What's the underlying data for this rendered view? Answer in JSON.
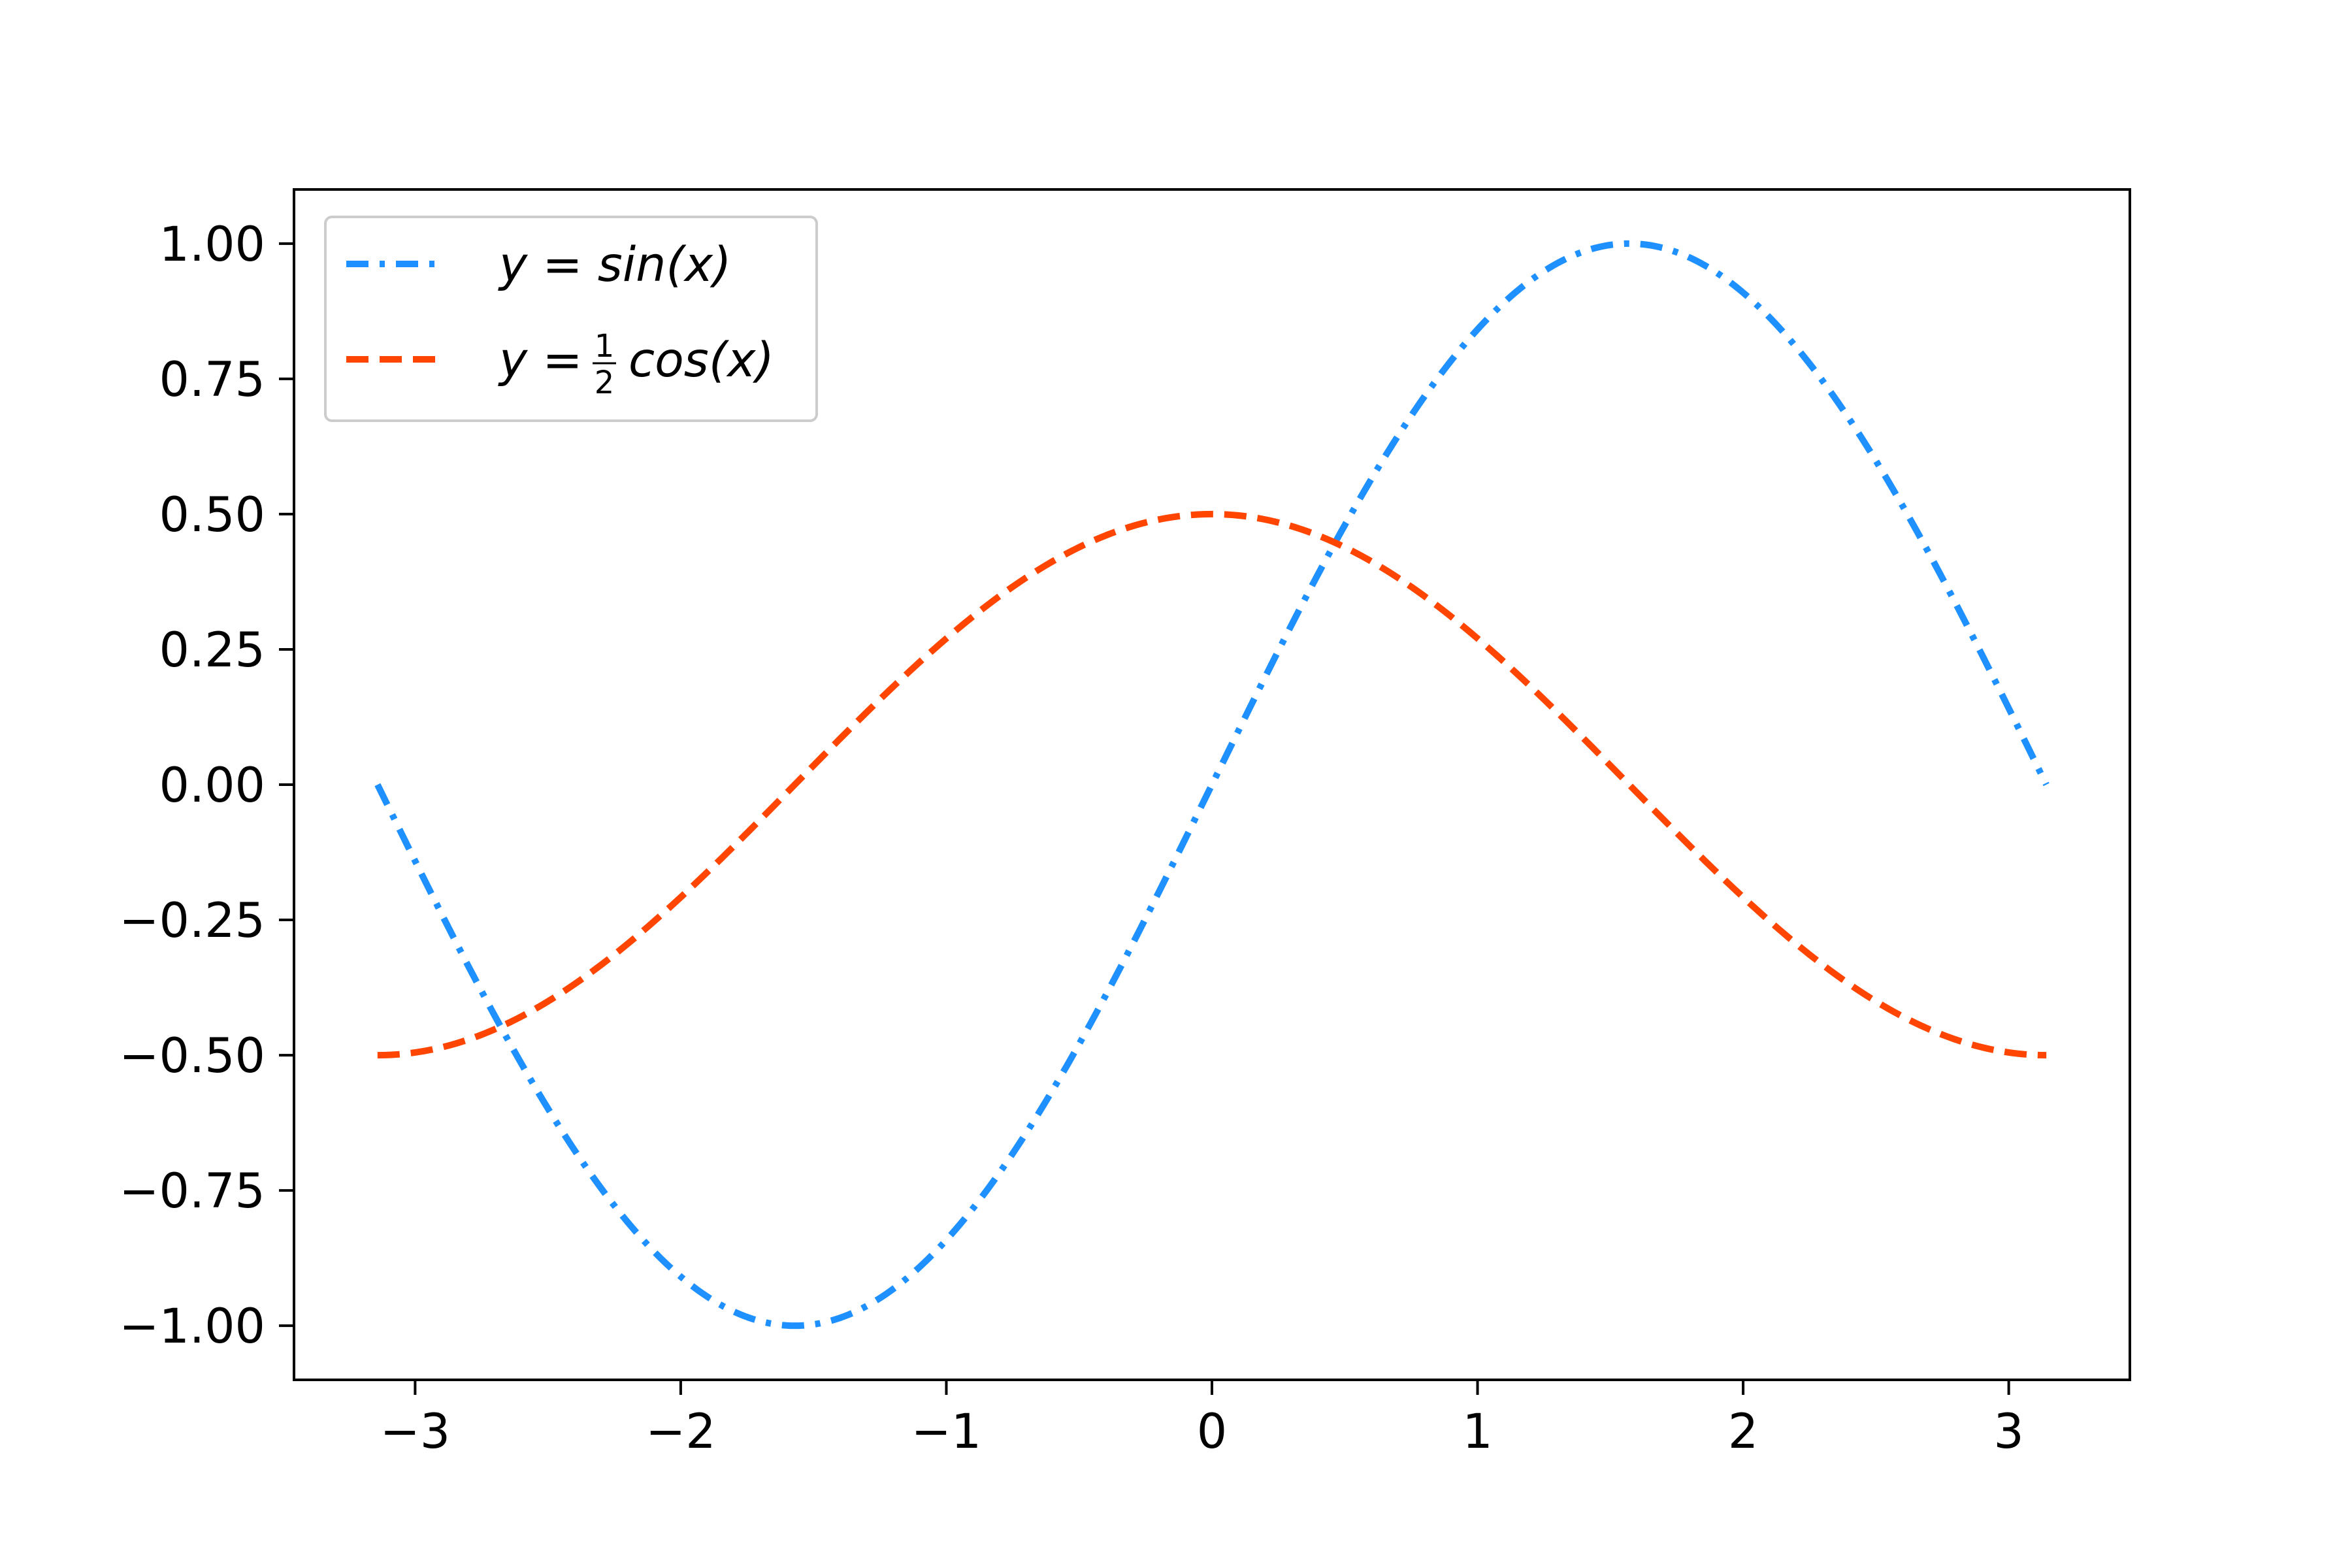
{
  "chart_data": {
    "type": "line",
    "title": "",
    "xlabel": "",
    "ylabel": "",
    "xlim": [
      -3.456,
      3.456
    ],
    "ylim": [
      -1.1,
      1.1
    ],
    "x_ticks": [
      -3,
      -2,
      -1,
      0,
      1,
      2,
      3
    ],
    "x_tick_labels": [
      "−3",
      "−2",
      "−1",
      "0",
      "1",
      "2",
      "3"
    ],
    "y_ticks": [
      1.0,
      0.75,
      0.5,
      0.25,
      0.0,
      -0.25,
      -0.5,
      -0.75,
      -1.0
    ],
    "y_tick_labels": [
      "1.00",
      "0.75",
      "0.50",
      "0.25",
      "0.00",
      "−0.25",
      "−0.50",
      "−0.75",
      "−1.00"
    ],
    "grid": false,
    "legend_position": "top-left",
    "x_range": [
      -3.14159,
      3.14159
    ],
    "series": [
      {
        "name": "y = sin(x)",
        "legend_prefix": "y = ",
        "legend_body": "sin(x)",
        "color": "#1e90ff",
        "linestyle": "dashdot",
        "x": [
          -3.14,
          -2.75,
          -2.36,
          -1.96,
          -1.57,
          -1.18,
          -0.79,
          -0.39,
          0.0,
          0.39,
          0.79,
          1.18,
          1.57,
          1.96,
          2.36,
          2.75,
          3.14
        ],
        "y": [
          0.0,
          -0.38,
          -0.71,
          -0.92,
          -1.0,
          -0.92,
          -0.71,
          -0.38,
          0.0,
          0.38,
          0.71,
          0.92,
          1.0,
          0.92,
          0.71,
          0.38,
          0.0
        ]
      },
      {
        "name": "y = 1/2 cos(x)",
        "legend_prefix": "y = ",
        "legend_frac_num": "1",
        "legend_frac_den": "2",
        "legend_body": "cos(x)",
        "color": "#ff4500",
        "linestyle": "dashed",
        "x": [
          -3.14,
          -2.75,
          -2.36,
          -1.96,
          -1.57,
          -1.18,
          -0.79,
          -0.39,
          0.0,
          0.39,
          0.79,
          1.18,
          1.57,
          1.96,
          2.36,
          2.75,
          3.14
        ],
        "y": [
          -0.5,
          -0.46,
          -0.35,
          -0.19,
          0.0,
          0.19,
          0.35,
          0.46,
          0.5,
          0.46,
          0.35,
          0.19,
          0.0,
          -0.19,
          -0.35,
          -0.46,
          -0.5
        ]
      }
    ]
  }
}
